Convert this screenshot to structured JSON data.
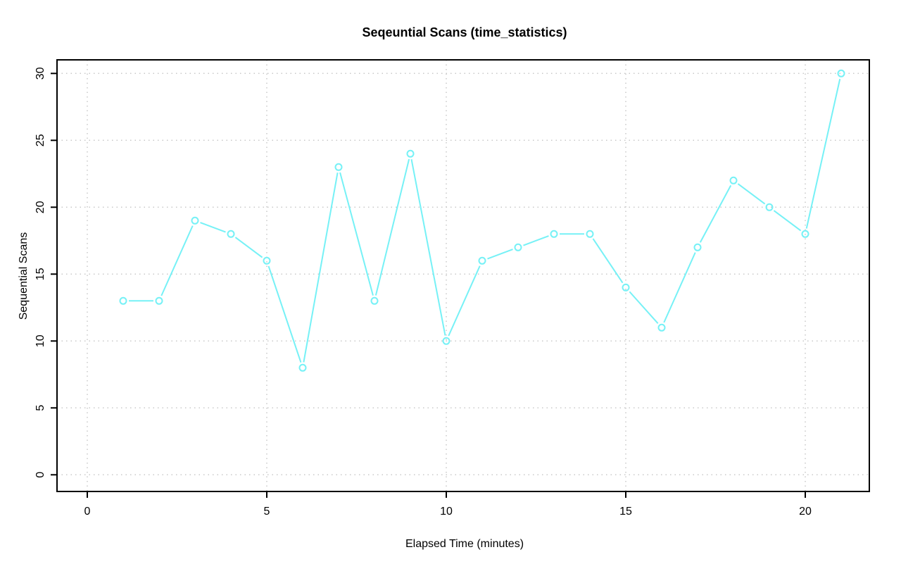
{
  "chart_data": {
    "type": "line",
    "title": "Seqeuntial Scans (time_statistics)",
    "xlabel": "Elapsed Time (minutes)",
    "ylabel": "Sequential Scans",
    "x": [
      1,
      2,
      3,
      4,
      5,
      6,
      7,
      8,
      9,
      10,
      11,
      12,
      13,
      14,
      15,
      16,
      17,
      18,
      19,
      20,
      21
    ],
    "values": [
      13,
      13,
      19,
      18,
      16,
      8,
      23,
      13,
      24,
      10,
      16,
      17,
      18,
      18,
      14,
      11,
      17,
      22,
      20,
      18,
      30
    ],
    "x_ticks": [
      0,
      5,
      10,
      15,
      20
    ],
    "y_ticks": [
      0,
      5,
      10,
      15,
      20,
      25,
      30
    ],
    "xlim": [
      -0.85,
      21.8
    ],
    "ylim": [
      -1.25,
      31.0
    ],
    "grid": "on",
    "grid_style": "dotted",
    "marker": "open-circle",
    "line_style": "points-and-lines-with-gaps",
    "legend": "none",
    "colors": {
      "line": "#76F1F6",
      "marker": "#76F1F6",
      "grid": "#C9C9C9",
      "axis": "#000000",
      "background": "#FFFFFF"
    }
  }
}
